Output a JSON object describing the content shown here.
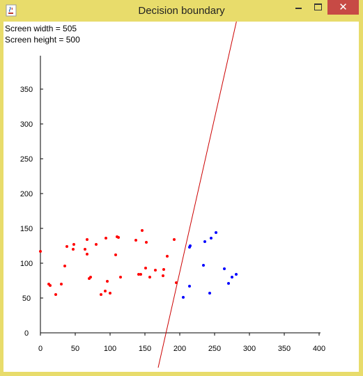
{
  "window": {
    "title": "Decision boundary",
    "minimize_icon": "minimize-icon",
    "maximize_icon": "maximize-icon",
    "close_icon": "close-icon",
    "app_icon": "java-coffee-icon"
  },
  "info": {
    "screen_width": "Screen width = 505",
    "screen_height": "Screen height = 500"
  },
  "colors": {
    "class_a": "#ff0000",
    "class_b": "#0000ff",
    "boundary": "#cc0000",
    "close_button": "#c74a45",
    "frame": "#e8dc6b"
  },
  "chart_data": {
    "type": "scatter",
    "xlim": [
      0,
      400
    ],
    "ylim": [
      0,
      400
    ],
    "x_ticks": [
      "0",
      "50",
      "100",
      "150",
      "200",
      "250",
      "300",
      "350",
      "400"
    ],
    "y_ticks": [
      "0",
      "50",
      "100",
      "150",
      "200",
      "250",
      "300",
      "350"
    ],
    "x_tick_values": [
      0,
      50,
      100,
      150,
      200,
      250,
      300,
      350,
      400
    ],
    "y_tick_values": [
      0,
      50,
      100,
      150,
      200,
      250,
      300,
      350
    ],
    "series": [
      {
        "color": "#ff0000",
        "points": [
          [
            0,
            117
          ],
          [
            12,
            70
          ],
          [
            14,
            68
          ],
          [
            22,
            55
          ],
          [
            30,
            70
          ],
          [
            35,
            96
          ],
          [
            38,
            124
          ],
          [
            47,
            120
          ],
          [
            48,
            127
          ],
          [
            64,
            120
          ],
          [
            67,
            113
          ],
          [
            67,
            134
          ],
          [
            70,
            78
          ],
          [
            72,
            80
          ],
          [
            80,
            127
          ],
          [
            87,
            55
          ],
          [
            93,
            60
          ],
          [
            94,
            136
          ],
          [
            96,
            74
          ],
          [
            100,
            57
          ],
          [
            108,
            112
          ],
          [
            110,
            138
          ],
          [
            112,
            137
          ],
          [
            115,
            80
          ],
          [
            137,
            133
          ],
          [
            141,
            84
          ],
          [
            144,
            84
          ],
          [
            146,
            147
          ],
          [
            151,
            93
          ],
          [
            152,
            130
          ],
          [
            157,
            80
          ],
          [
            165,
            90
          ],
          [
            176,
            82
          ],
          [
            177,
            91
          ],
          [
            182,
            110
          ],
          [
            192,
            134
          ],
          [
            195,
            72
          ]
        ]
      },
      {
        "color": "#0000ff",
        "points": [
          [
            205,
            51
          ],
          [
            214,
            67
          ],
          [
            214,
            123
          ],
          [
            215,
            125
          ],
          [
            234,
            97
          ],
          [
            236,
            131
          ],
          [
            243,
            57
          ],
          [
            245,
            136
          ],
          [
            252,
            144
          ],
          [
            264,
            92
          ],
          [
            270,
            71
          ],
          [
            275,
            80
          ],
          [
            281,
            84
          ]
        ]
      }
    ],
    "boundary_line": {
      "color": "#cc0000",
      "points": [
        [
          169,
          -50
        ],
        [
          282,
          450
        ]
      ]
    }
  }
}
